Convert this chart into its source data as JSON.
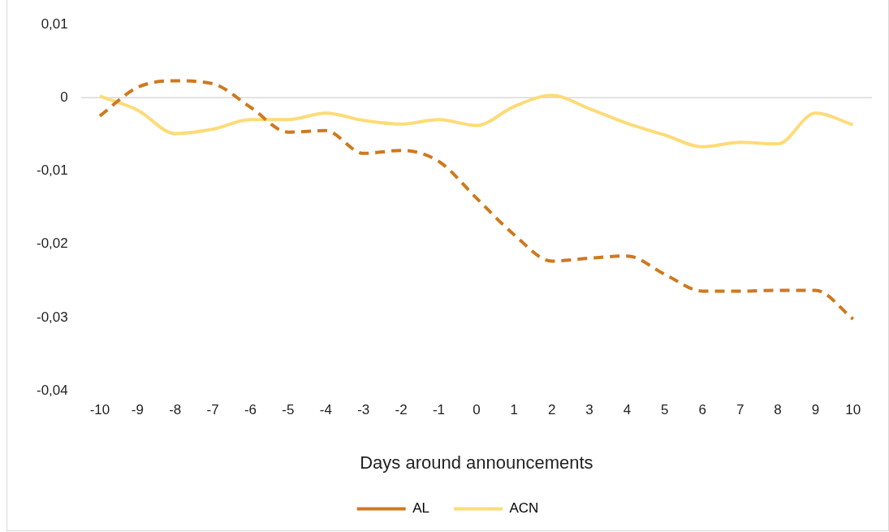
{
  "chart_data": {
    "type": "line",
    "xlabel": "Days around announcements",
    "categories": [
      "-10",
      "-9",
      "-8",
      "-7",
      "-6",
      "-5",
      "-4",
      "-3",
      "-2",
      "-1",
      "0",
      "1",
      "2",
      "3",
      "4",
      "5",
      "6",
      "7",
      "8",
      "9",
      "10"
    ],
    "series": [
      {
        "name": "AL",
        "color": "#d0781f",
        "line_style": "dashed",
        "values": [
          -0.0025,
          0.0014,
          0.0023,
          0.0019,
          -0.0013,
          -0.0047,
          -0.0045,
          -0.0076,
          -0.0072,
          -0.0087,
          -0.0137,
          -0.0187,
          -0.0223,
          -0.0219,
          -0.0216,
          -0.0241,
          -0.0264,
          -0.0264,
          -0.0263,
          -0.0263,
          -0.0302
        ]
      },
      {
        "name": "ACN",
        "color": "#fddb78",
        "line_style": "solid",
        "values": [
          0.0002,
          -0.0017,
          -0.0049,
          -0.0043,
          -0.003,
          -0.003,
          -0.0021,
          -0.0031,
          -0.0036,
          -0.003,
          -0.0038,
          -0.0012,
          0.0003,
          -0.0015,
          -0.0035,
          -0.0051,
          -0.0067,
          -0.0061,
          -0.0063,
          -0.0021,
          -0.0037
        ]
      }
    ],
    "ylim": [
      -0.04,
      0.01
    ],
    "yticks": [
      {
        "value": -0.04,
        "label": "-0,04"
      },
      {
        "value": -0.03,
        "label": "-0,03"
      },
      {
        "value": -0.02,
        "label": "-0,02"
      },
      {
        "value": -0.01,
        "label": "-0,01"
      },
      {
        "value": 0,
        "label": "0"
      },
      {
        "value": 0.01,
        "label": "0,01"
      }
    ],
    "ref_lines": [
      {
        "axis": "y",
        "value": 0,
        "color": "#d9d9d9"
      }
    ],
    "legend": "bottom",
    "marker": "none"
  }
}
